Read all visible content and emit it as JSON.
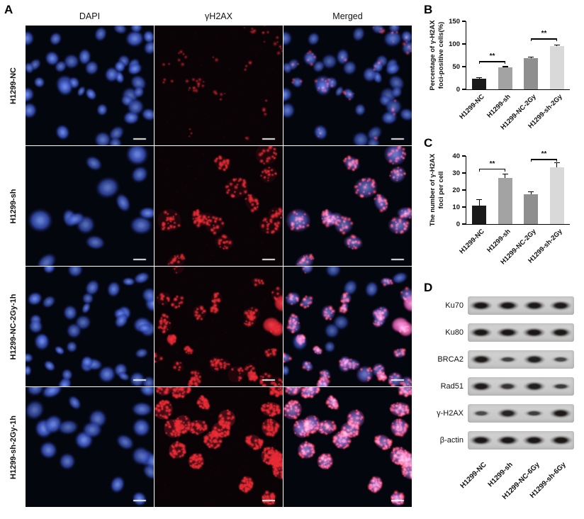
{
  "figure": {
    "panel_a": {
      "label": "A",
      "column_headers": [
        "DAPI",
        "γH2AX",
        "Merged"
      ],
      "rows": [
        {
          "label": "H1299-NC",
          "nuclei": "dense-small",
          "foci": "low"
        },
        {
          "label": "H1299-sh",
          "nuclei": "sparse-large",
          "foci": "medium"
        },
        {
          "label": "H1299-NC-2Gy-1h",
          "nuclei": "dense-small",
          "foci": "patchy"
        },
        {
          "label": "H1299-sh-2Gy-1h",
          "nuclei": "medium",
          "foci": "high"
        }
      ]
    },
    "panel_b": {
      "label": "B"
    },
    "panel_c": {
      "label": "C"
    },
    "panel_d": {
      "label": "D",
      "blots": [
        {
          "label": "Ku70",
          "intensities": [
            0.95,
            0.95,
            0.92,
            0.9
          ]
        },
        {
          "label": "Ku80",
          "intensities": [
            0.95,
            0.95,
            0.95,
            0.92
          ]
        },
        {
          "label": "BRCA2",
          "intensities": [
            0.9,
            0.45,
            0.85,
            0.4
          ]
        },
        {
          "label": "Rad51",
          "intensities": [
            0.9,
            0.6,
            0.85,
            0.55
          ]
        },
        {
          "label": "γ-H2AX",
          "intensities": [
            0.35,
            0.8,
            0.5,
            0.9
          ]
        },
        {
          "label": "β-actin",
          "intensities": [
            0.95,
            0.95,
            0.95,
            0.95
          ]
        }
      ],
      "lane_labels": [
        "H1299-NC",
        "H1299-sh",
        "H1299-NC-6Gy",
        "H1299-sh-6Gy"
      ]
    }
  },
  "chart_data": [
    {
      "id": "B",
      "type": "bar",
      "categories": [
        "H1299-NC",
        "H1299-sh",
        "H1299-NC-2Gy",
        "H1299-sh-2Gy"
      ],
      "values": [
        23,
        48,
        68,
        96
      ],
      "errors": [
        3,
        2,
        3,
        2
      ],
      "bar_colors": [
        "#1a1a1a",
        "#a3a3a3",
        "#8f8f8f",
        "#d9d9d9"
      ],
      "ylabel_lines": [
        "Percentage of γ-H2AX",
        "foci-positive cells(%)"
      ],
      "ylim": [
        0,
        150
      ],
      "yticks": [
        0,
        50,
        100,
        150
      ],
      "grid": false,
      "legend": null,
      "significance": [
        {
          "between": [
            0,
            1
          ],
          "label": "**",
          "y": 62
        },
        {
          "between": [
            2,
            3
          ],
          "label": "**",
          "y": 112
        }
      ]
    },
    {
      "id": "C",
      "type": "bar",
      "categories": [
        "H1299-NC",
        "H1299-sh",
        "H1299-NC-2Gy",
        "H1299-sh-2Gy"
      ],
      "values": [
        11,
        27,
        17.5,
        33.5
      ],
      "errors": [
        3.5,
        2.5,
        1.5,
        2.5
      ],
      "bar_colors": [
        "#1a1a1a",
        "#a3a3a3",
        "#8f8f8f",
        "#d9d9d9"
      ],
      "ylabel_lines": [
        "The number of γ-H2AX",
        "foci per cell"
      ],
      "ylim": [
        0,
        40
      ],
      "yticks": [
        0,
        10,
        20,
        30,
        40
      ],
      "grid": false,
      "legend": null,
      "significance": [
        {
          "between": [
            0,
            1
          ],
          "label": "**",
          "y": 32.5
        },
        {
          "between": [
            2,
            3
          ],
          "label": "**",
          "y": 38.2
        }
      ]
    }
  ]
}
